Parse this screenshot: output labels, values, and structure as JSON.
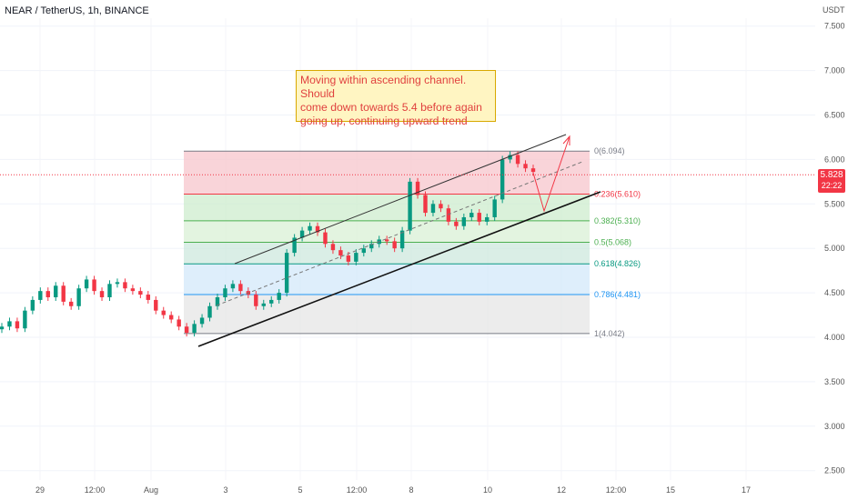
{
  "header": {
    "title": "NEAR / TetherUS, 1h, BINANCE",
    "currency": "USDT"
  },
  "annotation": {
    "lines": [
      "Moving within ascending channel. Should",
      "come down towards 5.4 before again",
      "going up, continuing upward trend"
    ]
  },
  "price_badge": {
    "price": "5.828",
    "countdown": "22:22",
    "color": "#f23645"
  },
  "chart_data": {
    "type": "line",
    "title": "NEAR / TetherUS, 1h, BINANCE",
    "ylabel": "USDT",
    "ylim": [
      2.5,
      7.75
    ],
    "y_ticks": [
      "7.500",
      "7.000",
      "6.500",
      "6.000",
      "5.500",
      "5.000",
      "4.500",
      "4.000",
      "3.500",
      "3.000",
      "2.500"
    ],
    "x_ticks": [
      "29",
      "12:00",
      "Aug",
      "3",
      "5",
      "12:00",
      "8",
      "10",
      "12",
      "12:00",
      "15",
      "17"
    ],
    "series": [
      {
        "values": [
          4.12,
          4.18,
          4.1,
          4.3,
          4.42,
          4.52,
          4.45,
          4.58,
          4.4,
          4.35,
          4.55,
          4.65,
          4.52,
          4.45,
          4.6,
          4.62,
          4.55,
          4.52,
          4.48,
          4.42,
          4.3,
          4.25,
          4.2,
          4.12,
          4.05,
          4.15,
          4.22,
          4.35,
          4.45,
          4.55,
          4.6,
          4.52,
          4.48,
          4.35,
          4.38,
          4.42,
          4.5,
          4.95,
          5.12,
          5.2,
          5.25,
          5.18,
          5.05,
          4.98,
          4.92,
          4.85,
          4.95,
          5.0,
          5.05,
          5.1,
          5.08,
          5.0,
          5.2,
          5.75,
          5.6,
          5.4,
          5.5,
          5.45,
          5.3,
          5.25,
          5.35,
          5.4,
          5.3,
          5.35,
          5.55,
          6.0,
          6.05,
          5.95,
          5.9,
          5.86
        ]
      }
    ],
    "fibonacci": [
      {
        "label": "0(6.094)",
        "value": 6.094,
        "color": "#787b86"
      },
      {
        "label": "0.236(5.610)",
        "value": 5.61,
        "color": "#f23645"
      },
      {
        "label": "0.382(5.310)",
        "value": 5.31,
        "color": "#4caf50"
      },
      {
        "label": "0.5(5.068)",
        "value": 5.068,
        "color": "#4caf50"
      },
      {
        "label": "0.618(4.826)",
        "value": 4.826,
        "color": "#089981"
      },
      {
        "label": "0.786(4.481)",
        "value": 4.481,
        "color": "#2196f3"
      },
      {
        "label": "1(4.042)",
        "value": 4.042,
        "color": "#787b86"
      }
    ],
    "grid": true,
    "colors": {
      "up": "#089981",
      "down": "#f23645"
    }
  }
}
